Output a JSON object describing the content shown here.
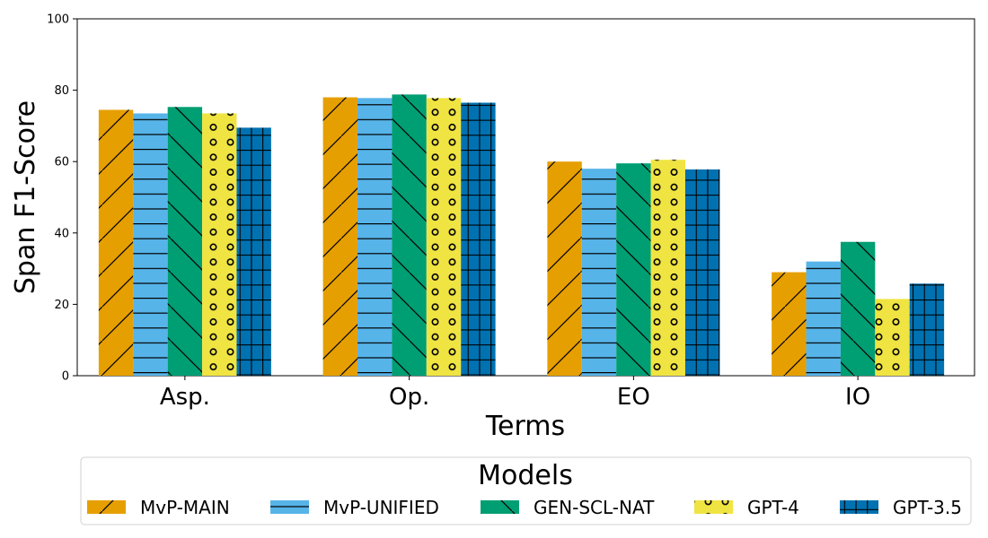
{
  "chart_data": {
    "type": "bar",
    "xlabel": "Terms",
    "ylabel": "Span F1-Score",
    "ylim": [
      0,
      100
    ],
    "yticks": [
      0,
      20,
      40,
      60,
      80,
      100
    ],
    "categories": [
      "Asp.",
      "Op.",
      "EO",
      "IO"
    ],
    "grid": false,
    "legend": {
      "title": "Models",
      "placement": "bottom-center"
    },
    "series": [
      {
        "name": "MvP-MAIN",
        "color": "#E69F00",
        "hatch": "diagonal-forward",
        "values": [
          74.5,
          78.0,
          60.0,
          29.0
        ]
      },
      {
        "name": "MvP-UNIFIED",
        "color": "#56B4E9",
        "hatch": "horizontal",
        "values": [
          73.5,
          77.8,
          58.0,
          32.0
        ]
      },
      {
        "name": "GEN-SCL-NAT",
        "color": "#009E73",
        "hatch": "diagonal-back",
        "values": [
          75.3,
          78.8,
          59.5,
          37.5
        ]
      },
      {
        "name": "GPT-4",
        "color": "#F0E442",
        "hatch": "circles",
        "values": [
          73.5,
          77.8,
          60.5,
          21.5
        ]
      },
      {
        "name": "GPT-3.5",
        "color": "#0072B2",
        "hatch": "grid",
        "values": [
          69.5,
          76.5,
          57.8,
          25.8
        ]
      }
    ]
  }
}
